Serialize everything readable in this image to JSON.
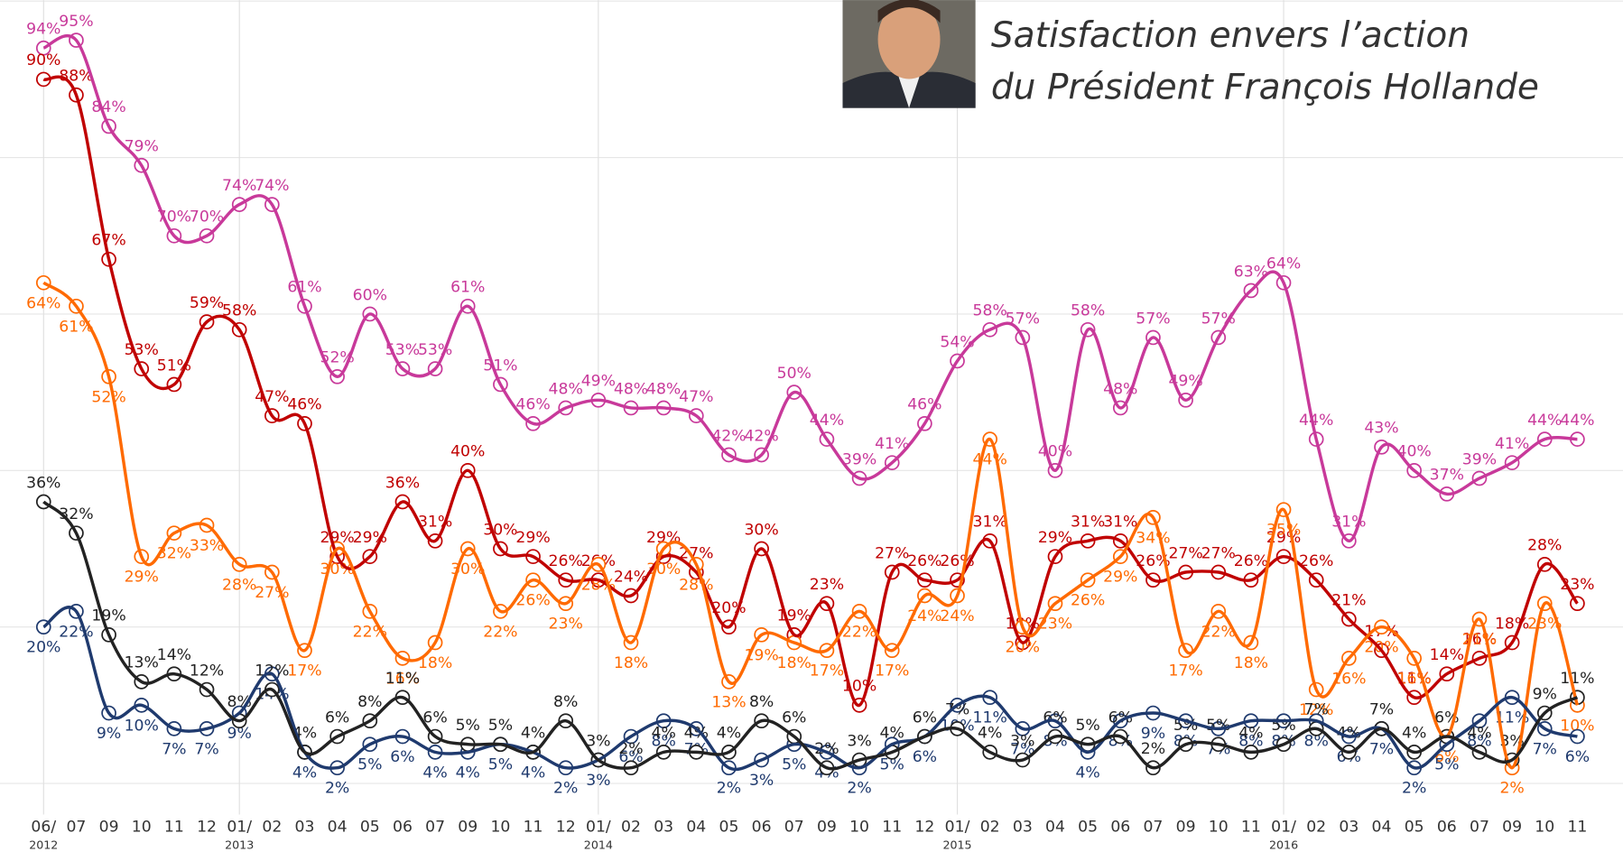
{
  "chart_data": {
    "type": "line",
    "title_lines": [
      "Satisfaction envers l’action",
      "du Président François Hollande"
    ],
    "categories": [
      "06/",
      "07",
      "09",
      "10",
      "11",
      "12",
      "01/",
      "02",
      "03",
      "04",
      "05",
      "06",
      "07",
      "09",
      "10",
      "11",
      "12",
      "01/",
      "02",
      "03",
      "04",
      "05",
      "06",
      "07",
      "09",
      "10",
      "11",
      "12",
      "01/",
      "02",
      "03",
      "04",
      "05",
      "06",
      "07",
      "09",
      "10",
      "11",
      "01/",
      "02",
      "03",
      "04",
      "05",
      "06",
      "07",
      "09",
      "10",
      "11"
    ],
    "category_sublabels": [
      "2012",
      null,
      null,
      null,
      null,
      null,
      "2013",
      null,
      null,
      null,
      null,
      null,
      null,
      null,
      null,
      null,
      null,
      "2014",
      null,
      null,
      null,
      null,
      null,
      null,
      null,
      null,
      null,
      null,
      "2015",
      null,
      null,
      null,
      null,
      null,
      null,
      null,
      null,
      null,
      "2016",
      null,
      null,
      null,
      null,
      null,
      null,
      null,
      null,
      null
    ],
    "ylim": [
      0,
      100
    ],
    "grid_values": [
      0,
      20,
      40,
      60,
      80,
      100
    ],
    "series": [
      {
        "color": "#c8399a",
        "label_side": "above",
        "values": [
          94,
          95,
          84,
          79,
          70,
          70,
          74,
          74,
          61,
          52,
          60,
          53,
          53,
          61,
          51,
          46,
          48,
          49,
          48,
          48,
          47,
          42,
          42,
          50,
          44,
          39,
          41,
          46,
          54,
          58,
          57,
          40,
          58,
          48,
          57,
          49,
          57,
          63,
          64,
          44,
          31,
          43,
          40,
          37,
          39,
          41,
          44,
          44
        ],
        "value_labels": [
          "94%",
          "95%",
          "84%",
          "79%",
          "70%",
          "70%",
          "74%",
          "74%",
          "61%",
          "52%",
          "60%",
          "53%",
          "53%",
          "61%",
          "51%",
          "46%",
          "48%",
          "49%",
          "48%",
          "48%",
          "47%",
          "42%",
          "42%",
          "50%",
          "44%",
          "39%",
          "41%",
          "46%",
          "54%",
          "58%",
          "57%",
          "40%",
          "58%",
          "48%",
          "57%",
          "49%",
          "57%",
          "63%",
          "64%",
          "44%",
          "31%",
          "43%",
          "40%",
          "37%",
          "39%",
          "41%",
          "44%",
          "44%"
        ]
      },
      {
        "color": "#c00000",
        "label_side": "above",
        "values": [
          90,
          88,
          67,
          53,
          51,
          59,
          58,
          47,
          46,
          29,
          29,
          36,
          31,
          40,
          30,
          29,
          26,
          26,
          24,
          29,
          27,
          20,
          30,
          19,
          23,
          10,
          27,
          26,
          26,
          31,
          18,
          29,
          31,
          31,
          26,
          27,
          27,
          26,
          29,
          26,
          21,
          17,
          11,
          14,
          16,
          18,
          28,
          23
        ],
        "value_labels": [
          "90%",
          "88%",
          "67%",
          "53%",
          "51%",
          "59%",
          "58%",
          "47%",
          "46%",
          "29%",
          "29%",
          "36%",
          "31%",
          "40%",
          "30%",
          "29%",
          "26%",
          "26%",
          "24%",
          "29%",
          "27%",
          "20%",
          "30%",
          "19%",
          "23%",
          "10%",
          "27%",
          "26%",
          "26%",
          "31%",
          "18%",
          "29%",
          "31%",
          "31%",
          "26%",
          "27%",
          "27%",
          "26%",
          "29%",
          "26%",
          "21%",
          "17%",
          "11%",
          "14%",
          "16%",
          "18%",
          "28%",
          "23%"
        ]
      },
      {
        "color": "#ff6a00",
        "label_side": "below",
        "values": [
          64,
          61,
          52,
          29,
          32,
          33,
          28,
          27,
          17,
          30,
          22,
          16,
          18,
          30,
          22,
          26,
          23,
          28,
          18,
          30,
          28,
          13,
          19,
          18,
          17,
          22,
          17,
          24,
          24,
          44,
          20,
          23,
          26,
          29,
          34,
          17,
          22,
          18,
          35,
          12,
          16,
          20,
          16,
          6,
          21,
          2,
          23,
          10
        ],
        "value_labels": [
          "64%",
          "61%",
          "52%",
          "29%",
          "32%",
          "33%",
          "28%",
          "27%",
          "17%",
          "30%",
          "22%",
          "16%",
          "18%",
          "30%",
          "22%",
          "26%",
          "23%",
          "28%",
          "18%",
          "30%",
          "28%",
          "13%",
          "19%",
          "18%",
          "17%",
          "22%",
          "17%",
          "24%",
          "24%",
          "44%",
          "20%",
          "23%",
          "26%",
          "29%",
          "34%",
          "17%",
          "22%",
          "18%",
          "35%",
          "12%",
          "16%",
          "20%",
          "16%",
          "6%",
          "21%",
          "2%",
          "23%",
          "10%"
        ]
      },
      {
        "color": "#1f3a6e",
        "label_side": "below",
        "values": [
          20,
          22,
          9,
          10,
          7,
          7,
          9,
          14,
          4,
          2,
          5,
          6,
          4,
          4,
          5,
          4,
          2,
          3,
          6,
          8,
          7,
          2,
          3,
          5,
          4,
          2,
          5,
          6,
          10,
          11,
          7,
          8,
          4,
          8,
          9,
          8,
          7,
          8,
          8,
          8,
          6,
          7,
          2,
          5,
          8,
          11,
          7,
          6
        ],
        "value_labels": [
          "20%",
          "22%",
          "9%",
          "10%",
          "7%",
          "7%",
          "9%",
          "14%",
          "4%",
          "2%",
          "5%",
          "6%",
          "4%",
          "4%",
          "5%",
          "4%",
          "2%",
          "3%",
          "6%",
          "8%",
          "7%",
          "2%",
          "3%",
          "5%",
          "4%",
          "2%",
          "5%",
          "6%",
          "10%",
          "11%",
          "7%",
          "8%",
          "4%",
          "8%",
          "9%",
          "8%",
          "7%",
          "8%",
          "8%",
          "8%",
          "6%",
          "7%",
          "2%",
          "5%",
          "8%",
          "11%",
          "7%",
          "6%"
        ]
      },
      {
        "color": "#222222",
        "label_side": "above",
        "values": [
          36,
          32,
          19,
          13,
          14,
          12,
          8,
          12,
          4,
          6,
          8,
          11,
          6,
          5,
          5,
          4,
          8,
          3,
          2,
          4,
          4,
          4,
          8,
          6,
          2,
          3,
          4,
          6,
          7,
          4,
          3,
          6,
          5,
          6,
          2,
          5,
          5,
          4,
          5,
          7,
          4,
          7,
          4,
          6,
          4,
          3,
          9,
          11
        ],
        "value_labels": [
          "36%",
          "32%",
          "19%",
          "13%",
          "14%",
          "12%",
          "8%",
          "12%",
          "4%",
          "6%",
          "8%",
          "11%",
          "6%",
          "5%",
          "5%",
          "4%",
          "8%",
          "3%",
          "2%",
          "4%",
          "4%",
          "4%",
          "8%",
          "6%",
          "2%",
          "3%",
          "4%",
          "6%",
          "7%",
          "4%",
          "3%",
          "6%",
          "5%",
          "6%",
          "2%",
          "5%",
          "5%",
          "4%",
          "5%",
          "7%",
          "4%",
          "7%",
          "4%",
          "6%",
          "4%",
          "3%",
          "9%",
          "11%"
        ]
      }
    ]
  }
}
